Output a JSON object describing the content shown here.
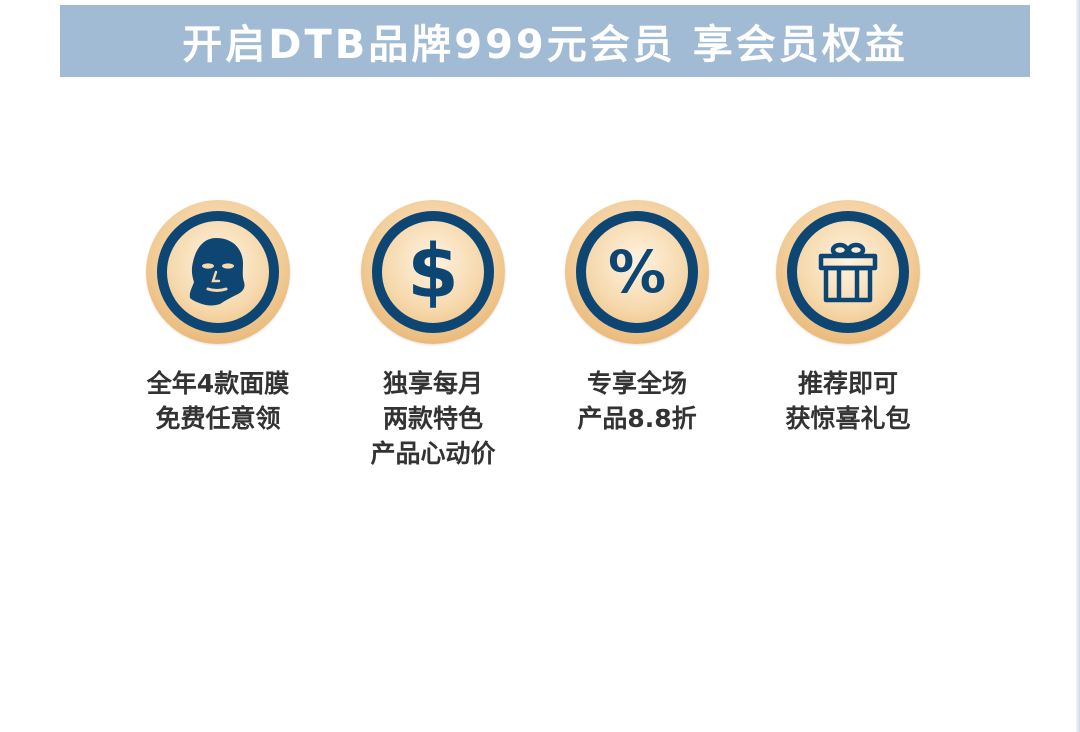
{
  "banner": {
    "title": "开启DTB品牌999元会员 享会员权益",
    "background_color": "#a2bbd5"
  },
  "benefits": [
    {
      "icon": "face-mask-icon",
      "lines": [
        "全年4款面膜",
        "免费任意领"
      ]
    },
    {
      "icon": "dollar-icon",
      "glyph": "$",
      "lines": [
        "独享每月",
        "两款特色",
        "产品心动价"
      ]
    },
    {
      "icon": "percent-icon",
      "glyph": "%",
      "lines": [
        "专享全场",
        "产品8.8折"
      ]
    },
    {
      "icon": "gift-icon",
      "lines": [
        "推荐即可",
        "获惊喜礼包"
      ]
    }
  ],
  "colors": {
    "icon_navy": "#0e4673",
    "medal_gold": "#f2cc97",
    "label_text": "#333333"
  }
}
